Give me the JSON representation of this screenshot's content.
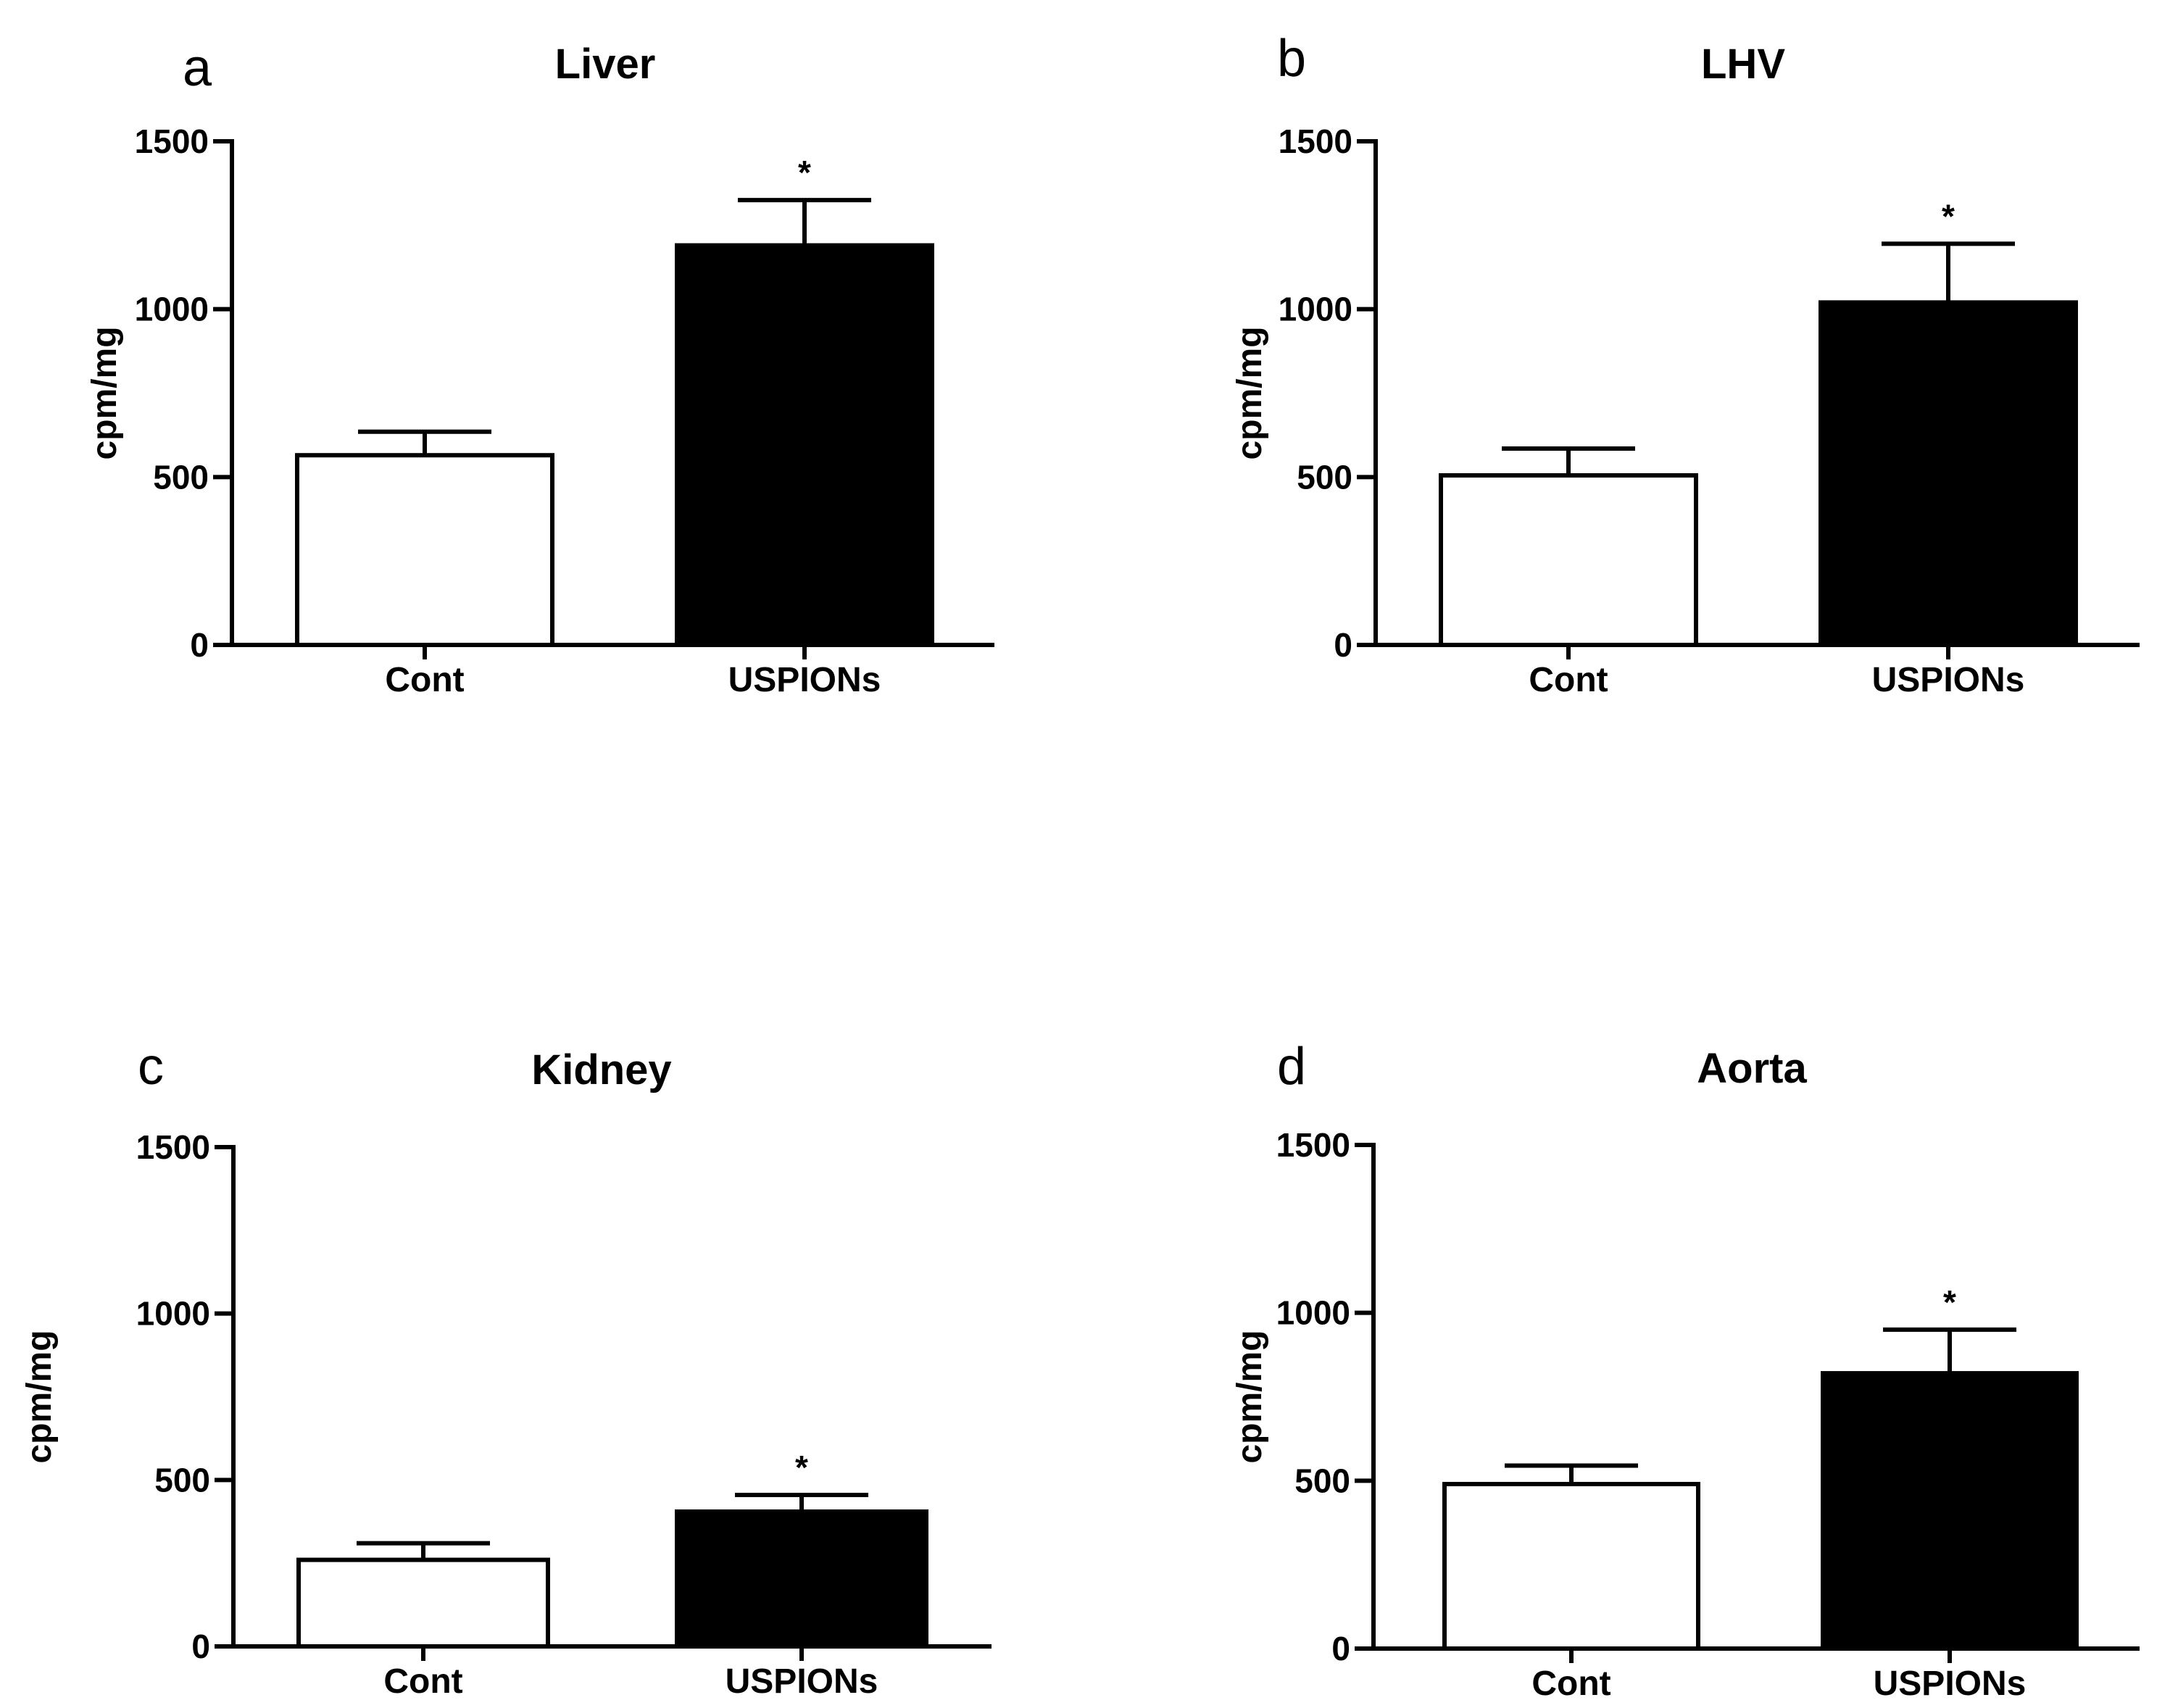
{
  "chart_data": [
    {
      "panel": "a",
      "type": "bar",
      "title": "Liver",
      "ylabel": "cpm/mg",
      "xlabel": "",
      "ylim": [
        0,
        1500
      ],
      "yticks": [
        0,
        500,
        1000,
        1500
      ],
      "categories": [
        "Cont",
        "USPIONs"
      ],
      "values": [
        565,
        1190
      ],
      "errors": [
        70,
        135
      ],
      "fills": [
        "#ffffff",
        "#000000"
      ],
      "significance": [
        "",
        "*"
      ]
    },
    {
      "panel": "b",
      "type": "bar",
      "title": "LHV",
      "ylabel": "cpm/mg",
      "xlabel": "",
      "ylim": [
        0,
        1500
      ],
      "yticks": [
        0,
        500,
        1000,
        1500
      ],
      "categories": [
        "Cont",
        "USPIONs"
      ],
      "values": [
        505,
        1020
      ],
      "errors": [
        80,
        175
      ],
      "fills": [
        "#ffffff",
        "#000000"
      ],
      "significance": [
        "",
        "*"
      ]
    },
    {
      "panel": "c",
      "type": "bar",
      "title": "Kidney",
      "ylabel": "cpm/mg",
      "xlabel": "",
      "ylim": [
        0,
        1500
      ],
      "yticks": [
        0,
        500,
        1000,
        1500
      ],
      "categories": [
        "Cont",
        "USPIONs"
      ],
      "values": [
        260,
        405
      ],
      "errors": [
        50,
        50
      ],
      "fills": [
        "#ffffff",
        "#000000"
      ],
      "significance": [
        "",
        "*"
      ]
    },
    {
      "panel": "d",
      "type": "bar",
      "title": "Aorta",
      "ylabel": "cpm/mg",
      "xlabel": "",
      "ylim": [
        0,
        1500
      ],
      "yticks": [
        0,
        500,
        1000,
        1500
      ],
      "categories": [
        "Cont",
        "USPIONs"
      ],
      "values": [
        490,
        820
      ],
      "errors": [
        55,
        130
      ],
      "fills": [
        "#ffffff",
        "#000000"
      ],
      "significance": [
        "",
        "*"
      ]
    }
  ]
}
